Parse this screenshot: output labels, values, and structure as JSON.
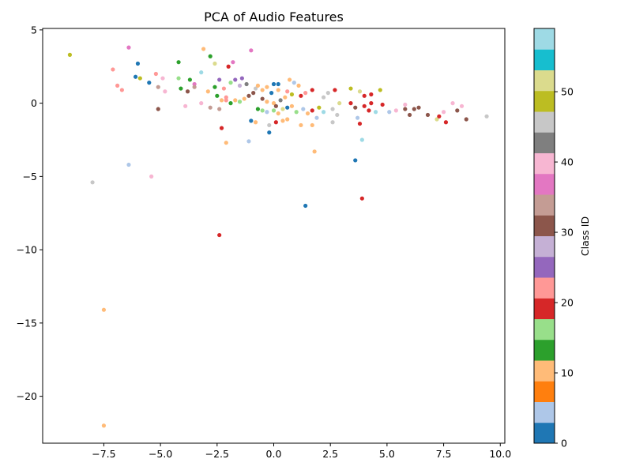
{
  "chart_data": {
    "type": "scatter",
    "title": "PCA of Audio Features",
    "xlabel": "",
    "ylabel": "",
    "xlim": [
      -10.2,
      10.2
    ],
    "ylim": [
      -23.2,
      5.1
    ],
    "xticks": [
      -7.5,
      -5.0,
      -2.5,
      0.0,
      2.5,
      5.0,
      7.5,
      10.0
    ],
    "xtick_labels": [
      "−7.5",
      "−5.0",
      "−2.5",
      "0.0",
      "2.5",
      "5.0",
      "7.5",
      "10.0"
    ],
    "yticks": [
      5,
      0,
      -5,
      -10,
      -15,
      -20
    ],
    "ytick_labels": [
      "5",
      "0",
      "−5",
      "−10",
      "−15",
      "−20"
    ],
    "grid": false,
    "colorbar": {
      "label": "Class ID",
      "range": [
        0,
        59
      ],
      "ticks": [
        0,
        10,
        20,
        30,
        40,
        50
      ],
      "tick_labels": [
        "0",
        "10",
        "20",
        "30",
        "40",
        "50"
      ],
      "colormap": "tab20",
      "colors": [
        "#1f77b4",
        "#aec7e8",
        "#ff7f0e",
        "#ffbb78",
        "#2ca02c",
        "#98df8a",
        "#d62728",
        "#ff9896",
        "#9467bd",
        "#c5b0d5",
        "#8c564b",
        "#c49c94",
        "#e377c2",
        "#f7b6d2",
        "#7f7f7f",
        "#c7c7c7",
        "#bcbd22",
        "#dbdb8d",
        "#17becf",
        "#9edae5"
      ]
    },
    "points": [
      {
        "x": -9.0,
        "y": 3.3,
        "c": 50
      },
      {
        "x": -6.4,
        "y": 3.8,
        "c": 38
      },
      {
        "x": -6.0,
        "y": 2.7,
        "c": 0
      },
      {
        "x": -7.1,
        "y": 2.3,
        "c": 21
      },
      {
        "x": -6.1,
        "y": 1.8,
        "c": 0
      },
      {
        "x": -5.9,
        "y": 1.7,
        "c": 50
      },
      {
        "x": -5.5,
        "y": 1.4,
        "c": 0
      },
      {
        "x": -6.9,
        "y": 1.2,
        "c": 21
      },
      {
        "x": -6.7,
        "y": 0.9,
        "c": 21
      },
      {
        "x": -5.2,
        "y": 2.0,
        "c": 21
      },
      {
        "x": -4.9,
        "y": 1.7,
        "c": 41
      },
      {
        "x": -5.1,
        "y": 1.1,
        "c": 35
      },
      {
        "x": -4.8,
        "y": 0.8,
        "c": 41
      },
      {
        "x": -5.1,
        "y": -0.4,
        "c": 30
      },
      {
        "x": -4.2,
        "y": 2.8,
        "c": 13
      },
      {
        "x": -4.2,
        "y": 1.7,
        "c": 17
      },
      {
        "x": -4.1,
        "y": 1.0,
        "c": 13
      },
      {
        "x": -3.7,
        "y": 1.6,
        "c": 13
      },
      {
        "x": -3.5,
        "y": 1.3,
        "c": 38
      },
      {
        "x": -3.2,
        "y": 2.1,
        "c": 58
      },
      {
        "x": -3.8,
        "y": 0.8,
        "c": 32
      },
      {
        "x": -3.5,
        "y": 1.1,
        "c": 34
      },
      {
        "x": -3.1,
        "y": 3.7,
        "c": 10
      },
      {
        "x": -2.8,
        "y": 3.2,
        "c": 12
      },
      {
        "x": -2.6,
        "y": 2.7,
        "c": 51
      },
      {
        "x": -3.9,
        "y": -0.2,
        "c": 41
      },
      {
        "x": -3.2,
        "y": 0.0,
        "c": 41
      },
      {
        "x": -2.8,
        "y": -0.3,
        "c": 35
      },
      {
        "x": -2.4,
        "y": -0.4,
        "c": 35
      },
      {
        "x": -2.9,
        "y": 0.8,
        "c": 11
      },
      {
        "x": -2.6,
        "y": 1.1,
        "c": 13
      },
      {
        "x": -2.4,
        "y": 1.6,
        "c": 25
      },
      {
        "x": -2.2,
        "y": 1.0,
        "c": 22
      },
      {
        "x": -2.0,
        "y": 2.5,
        "c": 20
      },
      {
        "x": -1.8,
        "y": 2.8,
        "c": 38
      },
      {
        "x": -2.1,
        "y": 0.4,
        "c": 21
      },
      {
        "x": -1.9,
        "y": 1.4,
        "c": 16
      },
      {
        "x": -1.7,
        "y": 1.6,
        "c": 24
      },
      {
        "x": -1.5,
        "y": 1.2,
        "c": 29
      },
      {
        "x": -1.4,
        "y": 1.7,
        "c": 24
      },
      {
        "x": -1.2,
        "y": 1.3,
        "c": 44
      },
      {
        "x": -1.0,
        "y": 3.6,
        "c": 38
      },
      {
        "x": -2.5,
        "y": 0.5,
        "c": 13
      },
      {
        "x": -2.3,
        "y": 0.2,
        "c": 11
      },
      {
        "x": -2.1,
        "y": 0.2,
        "c": 21
      },
      {
        "x": -1.9,
        "y": 0.0,
        "c": 13
      },
      {
        "x": -1.7,
        "y": 0.2,
        "c": 10
      },
      {
        "x": -1.5,
        "y": 0.1,
        "c": 17
      },
      {
        "x": -1.3,
        "y": 0.3,
        "c": 11
      },
      {
        "x": -1.1,
        "y": 0.5,
        "c": 32
      },
      {
        "x": -0.9,
        "y": 0.7,
        "c": 30
      },
      {
        "x": -0.8,
        "y": 1.0,
        "c": 45
      },
      {
        "x": -0.7,
        "y": 1.2,
        "c": 11
      },
      {
        "x": -0.5,
        "y": 0.9,
        "c": 11
      },
      {
        "x": -0.3,
        "y": 1.1,
        "c": 10
      },
      {
        "x": -0.1,
        "y": 0.7,
        "c": 0
      },
      {
        "x": 0.0,
        "y": 1.3,
        "c": 0
      },
      {
        "x": 0.2,
        "y": 1.3,
        "c": 0
      },
      {
        "x": 0.2,
        "y": 0.9,
        "c": 11
      },
      {
        "x": -0.5,
        "y": 0.3,
        "c": 30
      },
      {
        "x": -0.3,
        "y": 0.1,
        "c": 10
      },
      {
        "x": 0.0,
        "y": 0.0,
        "c": 10
      },
      {
        "x": 0.1,
        "y": -0.2,
        "c": 32
      },
      {
        "x": 0.3,
        "y": 0.2,
        "c": 44
      },
      {
        "x": 0.5,
        "y": 0.4,
        "c": 10
      },
      {
        "x": 0.6,
        "y": 0.8,
        "c": 22
      },
      {
        "x": 0.8,
        "y": 0.6,
        "c": 50
      },
      {
        "x": 0.9,
        "y": 1.4,
        "c": 4
      },
      {
        "x": 1.1,
        "y": 1.2,
        "c": 9
      },
      {
        "x": 1.2,
        "y": 0.5,
        "c": 18
      },
      {
        "x": 1.4,
        "y": 0.7,
        "c": 22
      },
      {
        "x": 1.7,
        "y": 0.9,
        "c": 18
      },
      {
        "x": 0.7,
        "y": 1.6,
        "c": 10
      },
      {
        "x": -0.7,
        "y": -0.4,
        "c": 12
      },
      {
        "x": -0.5,
        "y": -0.5,
        "c": 17
      },
      {
        "x": -0.3,
        "y": -0.6,
        "c": 4
      },
      {
        "x": 0.0,
        "y": -0.5,
        "c": 16
      },
      {
        "x": 0.2,
        "y": -0.7,
        "c": 11
      },
      {
        "x": 0.4,
        "y": -0.4,
        "c": 52
      },
      {
        "x": 0.6,
        "y": -0.3,
        "c": 0
      },
      {
        "x": 0.8,
        "y": -0.2,
        "c": 11
      },
      {
        "x": 1.0,
        "y": -0.6,
        "c": 16
      },
      {
        "x": 1.3,
        "y": -0.4,
        "c": 4
      },
      {
        "x": 1.5,
        "y": -0.7,
        "c": 9
      },
      {
        "x": 1.7,
        "y": -0.5,
        "c": 18
      },
      {
        "x": -1.0,
        "y": -1.2,
        "c": 0
      },
      {
        "x": -0.8,
        "y": -1.3,
        "c": 11
      },
      {
        "x": -0.2,
        "y": -1.5,
        "c": 47
      },
      {
        "x": 0.1,
        "y": -1.3,
        "c": 18
      },
      {
        "x": 0.4,
        "y": -1.2,
        "c": 9
      },
      {
        "x": 0.6,
        "y": -1.1,
        "c": 9
      },
      {
        "x": 1.2,
        "y": -1.5,
        "c": 9
      },
      {
        "x": 1.7,
        "y": -1.5,
        "c": 9
      },
      {
        "x": 1.9,
        "y": -1.0,
        "c": 4
      },
      {
        "x": 1.8,
        "y": -3.3,
        "c": 9
      },
      {
        "x": -0.2,
        "y": -2.0,
        "c": 2
      },
      {
        "x": -1.1,
        "y": -2.6,
        "c": 4
      },
      {
        "x": -2.3,
        "y": -1.7,
        "c": 18
      },
      {
        "x": -2.1,
        "y": -2.7,
        "c": 10
      },
      {
        "x": 2.0,
        "y": -0.3,
        "c": 50
      },
      {
        "x": 2.2,
        "y": 0.4,
        "c": 46
      },
      {
        "x": 2.4,
        "y": 0.7,
        "c": 47
      },
      {
        "x": 2.7,
        "y": 0.9,
        "c": 18
      },
      {
        "x": 2.9,
        "y": 0.0,
        "c": 52
      },
      {
        "x": 2.2,
        "y": -0.6,
        "c": 58
      },
      {
        "x": 2.6,
        "y": -0.4,
        "c": 46
      },
      {
        "x": 2.8,
        "y": -0.8,
        "c": 45
      },
      {
        "x": 2.6,
        "y": -1.3,
        "c": 46
      },
      {
        "x": 3.4,
        "y": 1.0,
        "c": 50
      },
      {
        "x": 3.8,
        "y": 0.8,
        "c": 51
      },
      {
        "x": 4.0,
        "y": 0.5,
        "c": 18
      },
      {
        "x": 4.3,
        "y": 0.6,
        "c": 18
      },
      {
        "x": 4.7,
        "y": 0.9,
        "c": 50
      },
      {
        "x": 3.4,
        "y": 0.0,
        "c": 18
      },
      {
        "x": 3.6,
        "y": -0.3,
        "c": 30
      },
      {
        "x": 4.0,
        "y": -0.2,
        "c": 18
      },
      {
        "x": 4.3,
        "y": 0.0,
        "c": 18
      },
      {
        "x": 4.8,
        "y": -0.1,
        "c": 18
      },
      {
        "x": 4.2,
        "y": -0.5,
        "c": 18
      },
      {
        "x": 4.5,
        "y": -0.6,
        "c": 58
      },
      {
        "x": 3.7,
        "y": -1.0,
        "c": 4
      },
      {
        "x": 3.8,
        "y": -1.4,
        "c": 18
      },
      {
        "x": 3.9,
        "y": -2.5,
        "c": 58
      },
      {
        "x": 5.1,
        "y": -0.6,
        "c": 4
      },
      {
        "x": 5.4,
        "y": -0.5,
        "c": 41
      },
      {
        "x": 5.8,
        "y": -0.4,
        "c": 30
      },
      {
        "x": 5.8,
        "y": -0.1,
        "c": 41
      },
      {
        "x": 6.0,
        "y": -0.8,
        "c": 30
      },
      {
        "x": 6.2,
        "y": -0.4,
        "c": 30
      },
      {
        "x": 6.4,
        "y": -0.3,
        "c": 30
      },
      {
        "x": 6.8,
        "y": -0.8,
        "c": 30
      },
      {
        "x": 7.2,
        "y": -1.1,
        "c": 52
      },
      {
        "x": 7.3,
        "y": -0.9,
        "c": 18
      },
      {
        "x": 7.6,
        "y": -1.3,
        "c": 18
      },
      {
        "x": 7.5,
        "y": -0.6,
        "c": 41
      },
      {
        "x": 7.9,
        "y": 0.0,
        "c": 41
      },
      {
        "x": 8.1,
        "y": -0.5,
        "c": 30
      },
      {
        "x": 8.3,
        "y": -0.2,
        "c": 41
      },
      {
        "x": 8.5,
        "y": -1.1,
        "c": 30
      },
      {
        "x": 9.4,
        "y": -0.9,
        "c": 46
      },
      {
        "x": 3.6,
        "y": -3.9,
        "c": 2
      },
      {
        "x": 3.9,
        "y": -6.5,
        "c": 20
      },
      {
        "x": 1.4,
        "y": -7.0,
        "c": 0
      },
      {
        "x": -2.4,
        "y": -9.0,
        "c": 20
      },
      {
        "x": -6.4,
        "y": -4.2,
        "c": 5
      },
      {
        "x": -5.4,
        "y": -5.0,
        "c": 41
      },
      {
        "x": -8.0,
        "y": -5.4,
        "c": 45
      },
      {
        "x": -7.5,
        "y": -14.1,
        "c": 11
      },
      {
        "x": -7.5,
        "y": -22.0,
        "c": 11
      }
    ]
  }
}
